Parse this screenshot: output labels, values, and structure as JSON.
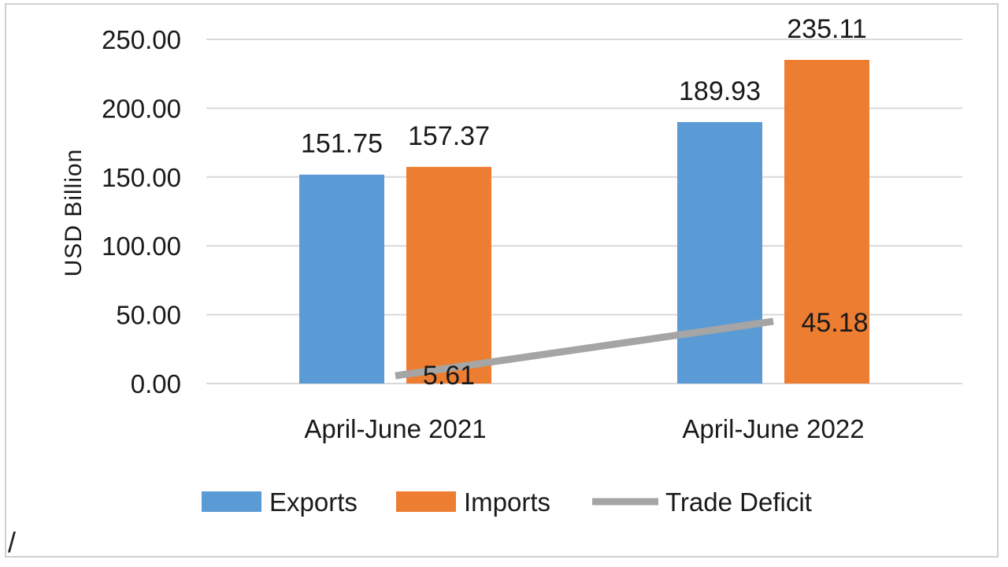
{
  "chart_data": {
    "type": "bar",
    "categories": [
      "April-June 2021",
      "April-June 2022"
    ],
    "series": [
      {
        "name": "Exports",
        "kind": "bar",
        "values": [
          151.75,
          189.93
        ],
        "labels": [
          "151.75",
          "189.93"
        ],
        "color": "#5b9bd5"
      },
      {
        "name": "Imports",
        "kind": "bar",
        "values": [
          157.37,
          235.11
        ],
        "labels": [
          "157.37",
          "235.11"
        ],
        "color": "#ed7d31"
      },
      {
        "name": "Trade Deficit",
        "kind": "line",
        "values": [
          5.61,
          45.18
        ],
        "labels": [
          "5.61",
          "45.18"
        ],
        "color": "#a5a5a5"
      }
    ],
    "ylabel": "USD Billion",
    "ylim": [
      0,
      250
    ],
    "yticks": [
      "0.00",
      "50.00",
      "100.00",
      "150.00",
      "200.00",
      "250.00"
    ],
    "grid": true,
    "legend_position": "bottom"
  },
  "corner_mark": "/"
}
